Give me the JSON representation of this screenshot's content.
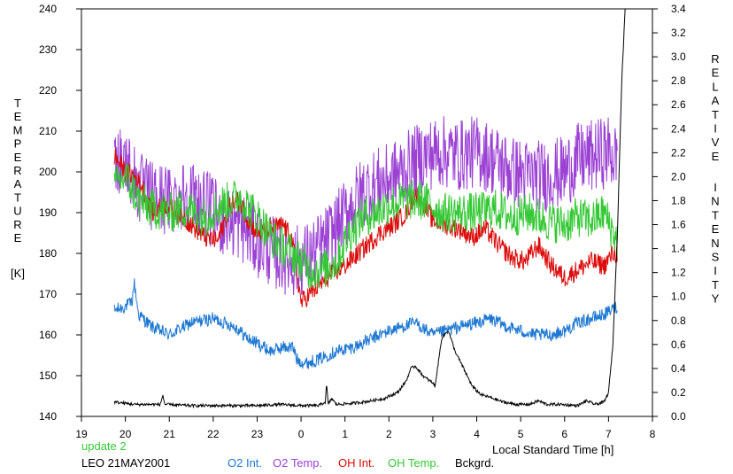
{
  "chart_data": {
    "type": "line",
    "y_left_label_letters": [
      "T",
      "E",
      "M",
      "P",
      "E",
      "R",
      "A",
      "T",
      "U",
      "R",
      "E"
    ],
    "y_left_unit": "[K]",
    "y_right_label_letters_1": [
      "R",
      "E",
      "L",
      "A",
      "T",
      "I",
      "V",
      "E"
    ],
    "y_right_label_letters_2": [
      "I",
      "N",
      "T",
      "E",
      "N",
      "S",
      "I",
      "T",
      "Y"
    ],
    "xlabel": "Local Standard Time [h]",
    "xlim": [
      19,
      32
    ],
    "ylim_left": [
      140,
      240
    ],
    "ylim_right": [
      0.0,
      3.4
    ],
    "x_ticks": [
      19,
      20,
      21,
      22,
      23,
      24,
      25,
      26,
      27,
      28,
      29,
      30,
      31,
      32
    ],
    "x_tick_labels": [
      "19",
      "20",
      "21",
      "22",
      "23",
      "0",
      "1",
      "2",
      "3",
      "4",
      "5",
      "6",
      "7",
      "8"
    ],
    "y_left_ticks": [
      140,
      150,
      160,
      170,
      180,
      190,
      200,
      210,
      220,
      230,
      240
    ],
    "y_right_ticks": [
      "0.0",
      "0.2",
      "0.4",
      "0.6",
      "0.8",
      "1.0",
      "1.2",
      "1.4",
      "1.6",
      "1.8",
      "2.0",
      "2.2",
      "2.4",
      "2.6",
      "2.8",
      "3.0",
      "3.2",
      "3.4"
    ],
    "update_text": "update 2",
    "station_text": "LEO 21MAY2001",
    "series": [
      {
        "name": "O2 Int.",
        "color": "#1e78d2",
        "axis": "left",
        "noise": 1.6,
        "points": [
          [
            19.75,
            166
          ],
          [
            20.0,
            167
          ],
          [
            20.15,
            168
          ],
          [
            20.2,
            173
          ],
          [
            20.3,
            165
          ],
          [
            20.6,
            162
          ],
          [
            21.0,
            160
          ],
          [
            21.5,
            163
          ],
          [
            22.0,
            164
          ],
          [
            22.5,
            162
          ],
          [
            22.8,
            159
          ],
          [
            23.0,
            158
          ],
          [
            23.3,
            156
          ],
          [
            23.6,
            157
          ],
          [
            23.8,
            157
          ],
          [
            23.85,
            156
          ],
          [
            23.9,
            154
          ],
          [
            24.1,
            153
          ],
          [
            24.4,
            154
          ],
          [
            24.8,
            156
          ],
          [
            25.2,
            157
          ],
          [
            25.6,
            159
          ],
          [
            26.0,
            161
          ],
          [
            26.3,
            162
          ],
          [
            26.6,
            163
          ],
          [
            27.0,
            160
          ],
          [
            27.3,
            161
          ],
          [
            27.6,
            162
          ],
          [
            28.0,
            163
          ],
          [
            28.3,
            164
          ],
          [
            28.7,
            162
          ],
          [
            29.0,
            161
          ],
          [
            29.3,
            160
          ],
          [
            29.7,
            160
          ],
          [
            30.0,
            161
          ],
          [
            30.3,
            163
          ],
          [
            30.6,
            164
          ],
          [
            30.9,
            165
          ],
          [
            31.2,
            167
          ]
        ]
      },
      {
        "name": "O2 Temp.",
        "color": "#9b41d4",
        "axis": "left",
        "noise": 9,
        "points": [
          [
            19.75,
            204
          ],
          [
            20.0,
            203
          ],
          [
            20.3,
            196
          ],
          [
            20.6,
            194
          ],
          [
            21.0,
            193
          ],
          [
            21.4,
            195
          ],
          [
            21.8,
            192
          ],
          [
            22.2,
            188
          ],
          [
            22.6,
            187
          ],
          [
            23.0,
            183
          ],
          [
            23.4,
            180
          ],
          [
            23.8,
            178
          ],
          [
            24.2,
            179
          ],
          [
            24.5,
            182
          ],
          [
            24.8,
            186
          ],
          [
            25.1,
            191
          ],
          [
            25.4,
            195
          ],
          [
            25.7,
            197
          ],
          [
            26.0,
            198
          ],
          [
            26.4,
            201
          ],
          [
            26.8,
            204
          ],
          [
            27.2,
            205
          ],
          [
            27.6,
            204
          ],
          [
            28.0,
            205
          ],
          [
            28.4,
            203
          ],
          [
            28.8,
            200
          ],
          [
            29.2,
            199
          ],
          [
            29.6,
            199
          ],
          [
            30.0,
            200
          ],
          [
            30.3,
            203
          ],
          [
            30.7,
            204
          ],
          [
            31.0,
            205
          ],
          [
            31.2,
            203
          ]
        ]
      },
      {
        "name": "OH Int.",
        "color": "#dc0a0a",
        "axis": "left",
        "noise": 2.5,
        "points": [
          [
            19.75,
            204
          ],
          [
            20.0,
            200
          ],
          [
            20.2,
            199
          ],
          [
            20.4,
            196
          ],
          [
            20.6,
            190
          ],
          [
            20.9,
            192
          ],
          [
            21.2,
            190
          ],
          [
            21.5,
            187
          ],
          [
            21.8,
            184
          ],
          [
            22.1,
            183
          ],
          [
            22.4,
            192
          ],
          [
            22.6,
            193
          ],
          [
            22.8,
            188
          ],
          [
            23.0,
            185
          ],
          [
            23.3,
            186
          ],
          [
            23.6,
            187
          ],
          [
            23.8,
            183
          ],
          [
            24.0,
            168
          ],
          [
            24.3,
            171
          ],
          [
            24.6,
            174
          ],
          [
            25.0,
            177
          ],
          [
            25.4,
            181
          ],
          [
            25.8,
            185
          ],
          [
            26.1,
            187
          ],
          [
            26.4,
            190
          ],
          [
            26.6,
            195
          ],
          [
            26.8,
            192
          ],
          [
            27.0,
            188
          ],
          [
            27.3,
            187
          ],
          [
            27.6,
            186
          ],
          [
            27.9,
            184
          ],
          [
            28.2,
            186
          ],
          [
            28.5,
            182
          ],
          [
            28.8,
            179
          ],
          [
            29.1,
            178
          ],
          [
            29.4,
            182
          ],
          [
            29.7,
            177
          ],
          [
            30.0,
            174
          ],
          [
            30.3,
            176
          ],
          [
            30.6,
            178
          ],
          [
            30.9,
            177
          ],
          [
            31.1,
            180
          ],
          [
            31.2,
            180
          ]
        ]
      },
      {
        "name": "OH Temp.",
        "color": "#34c834",
        "axis": "left",
        "noise": 5,
        "points": [
          [
            19.75,
            196
          ],
          [
            20.0,
            199
          ],
          [
            20.3,
            193
          ],
          [
            20.6,
            191
          ],
          [
            21.0,
            190
          ],
          [
            21.4,
            191
          ],
          [
            21.8,
            189
          ],
          [
            22.2,
            192
          ],
          [
            22.6,
            194
          ],
          [
            23.0,
            189
          ],
          [
            23.4,
            183
          ],
          [
            23.8,
            180
          ],
          [
            24.2,
            176
          ],
          [
            24.5,
            176
          ],
          [
            24.8,
            178
          ],
          [
            25.1,
            185
          ],
          [
            25.4,
            189
          ],
          [
            25.7,
            190
          ],
          [
            26.0,
            192
          ],
          [
            26.4,
            193
          ],
          [
            26.8,
            193
          ],
          [
            27.2,
            190
          ],
          [
            27.6,
            190
          ],
          [
            28.0,
            190
          ],
          [
            28.4,
            191
          ],
          [
            28.8,
            189
          ],
          [
            29.2,
            190
          ],
          [
            29.6,
            188
          ],
          [
            30.0,
            187
          ],
          [
            30.3,
            189
          ],
          [
            30.6,
            188
          ],
          [
            30.9,
            190
          ],
          [
            31.2,
            183
          ]
        ]
      },
      {
        "name": "Bckgrd.",
        "color": "#000000",
        "axis": "right",
        "noise": 0.012,
        "points": [
          [
            19.75,
            0.12
          ],
          [
            20.2,
            0.1
          ],
          [
            20.8,
            0.1
          ],
          [
            20.85,
            0.18
          ],
          [
            20.9,
            0.1
          ],
          [
            21.5,
            0.09
          ],
          [
            22.0,
            0.09
          ],
          [
            22.5,
            0.09
          ],
          [
            23.0,
            0.09
          ],
          [
            23.5,
            0.1
          ],
          [
            24.0,
            0.09
          ],
          [
            24.4,
            0.09
          ],
          [
            24.55,
            0.12
          ],
          [
            24.58,
            0.27
          ],
          [
            24.62,
            0.1
          ],
          [
            24.7,
            0.15
          ],
          [
            24.8,
            0.1
          ],
          [
            25.2,
            0.11
          ],
          [
            25.6,
            0.13
          ],
          [
            25.9,
            0.15
          ],
          [
            26.2,
            0.2
          ],
          [
            26.4,
            0.3
          ],
          [
            26.5,
            0.4
          ],
          [
            26.6,
            0.42
          ],
          [
            26.8,
            0.33
          ],
          [
            27.0,
            0.28
          ],
          [
            27.05,
            0.25
          ],
          [
            27.2,
            0.65
          ],
          [
            27.35,
            0.72
          ],
          [
            27.5,
            0.55
          ],
          [
            27.7,
            0.4
          ],
          [
            27.9,
            0.25
          ],
          [
            28.1,
            0.18
          ],
          [
            28.3,
            0.16
          ],
          [
            28.6,
            0.12
          ],
          [
            28.9,
            0.1
          ],
          [
            29.2,
            0.1
          ],
          [
            29.4,
            0.13
          ],
          [
            29.6,
            0.1
          ],
          [
            29.9,
            0.1
          ],
          [
            30.3,
            0.09
          ],
          [
            30.5,
            0.13
          ],
          [
            30.7,
            0.1
          ],
          [
            30.9,
            0.12
          ],
          [
            31.0,
            0.2
          ],
          [
            31.1,
            0.6
          ],
          [
            31.2,
            1.5
          ],
          [
            31.3,
            2.8
          ],
          [
            31.38,
            3.4
          ]
        ]
      }
    ]
  }
}
